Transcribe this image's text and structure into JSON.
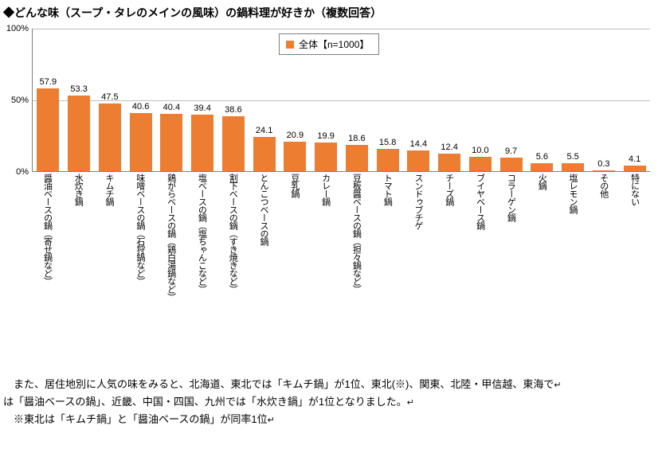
{
  "title": "◆どんな味（スープ・タレのメインの風味）の鍋料理が好きか（複数回答）",
  "chart": {
    "type": "bar",
    "bar_color": "#ed7d31",
    "background_color": "#ffffff",
    "grid_color": "#bfbfbf",
    "axis_color": "#7f7f7f",
    "ylim": [
      0,
      100
    ],
    "ytick_step": 50,
    "y_unit": "%",
    "legend": {
      "label": "全体【n=1000】",
      "swatch_color": "#ed7d31"
    },
    "label_fontsize": 11,
    "data_label_fontsize": 11,
    "title_fontsize": 14,
    "categories": [
      "醤油ベースの鍋（寄せ鍋など）",
      "水炊き鍋",
      "キムチ鍋",
      "味噌ベースの鍋（石狩鍋など）",
      "鶏がらベースの鍋（鶏白湯鍋など）",
      "塩ベースの鍋（塩ちゃんこなど）",
      "割下ベースの鍋（すき焼きなど）",
      "とんこつベースの鍋",
      "豆乳鍋",
      "カレー鍋",
      "豆板醤ベースの鍋（担々鍋など）",
      "トマト鍋",
      "スンドゥブチゲ",
      "チーズ鍋",
      "ブイヤベース鍋",
      "コラーゲン鍋",
      "火鍋",
      "塩レモン鍋",
      "その他",
      "特にない"
    ],
    "values": [
      57.9,
      53.3,
      47.5,
      40.6,
      40.4,
      39.4,
      38.6,
      24.1,
      20.9,
      19.9,
      18.6,
      15.8,
      14.4,
      12.4,
      10.0,
      9.7,
      5.6,
      5.5,
      0.3,
      4.1
    ]
  },
  "body": {
    "line1": "　また、居住地別に人気の味をみると、北海道、東北では「キムチ鍋」が1位、東北(※)、関東、北陸・甲信越、東海で",
    "line2": "は「醤油ベースの鍋」、近畿、中国・四国、九州では「水炊き鍋」が1位となりました。",
    "line3": "　※東北は「キムチ鍋」と「醤油ベースの鍋」が同率1位"
  }
}
